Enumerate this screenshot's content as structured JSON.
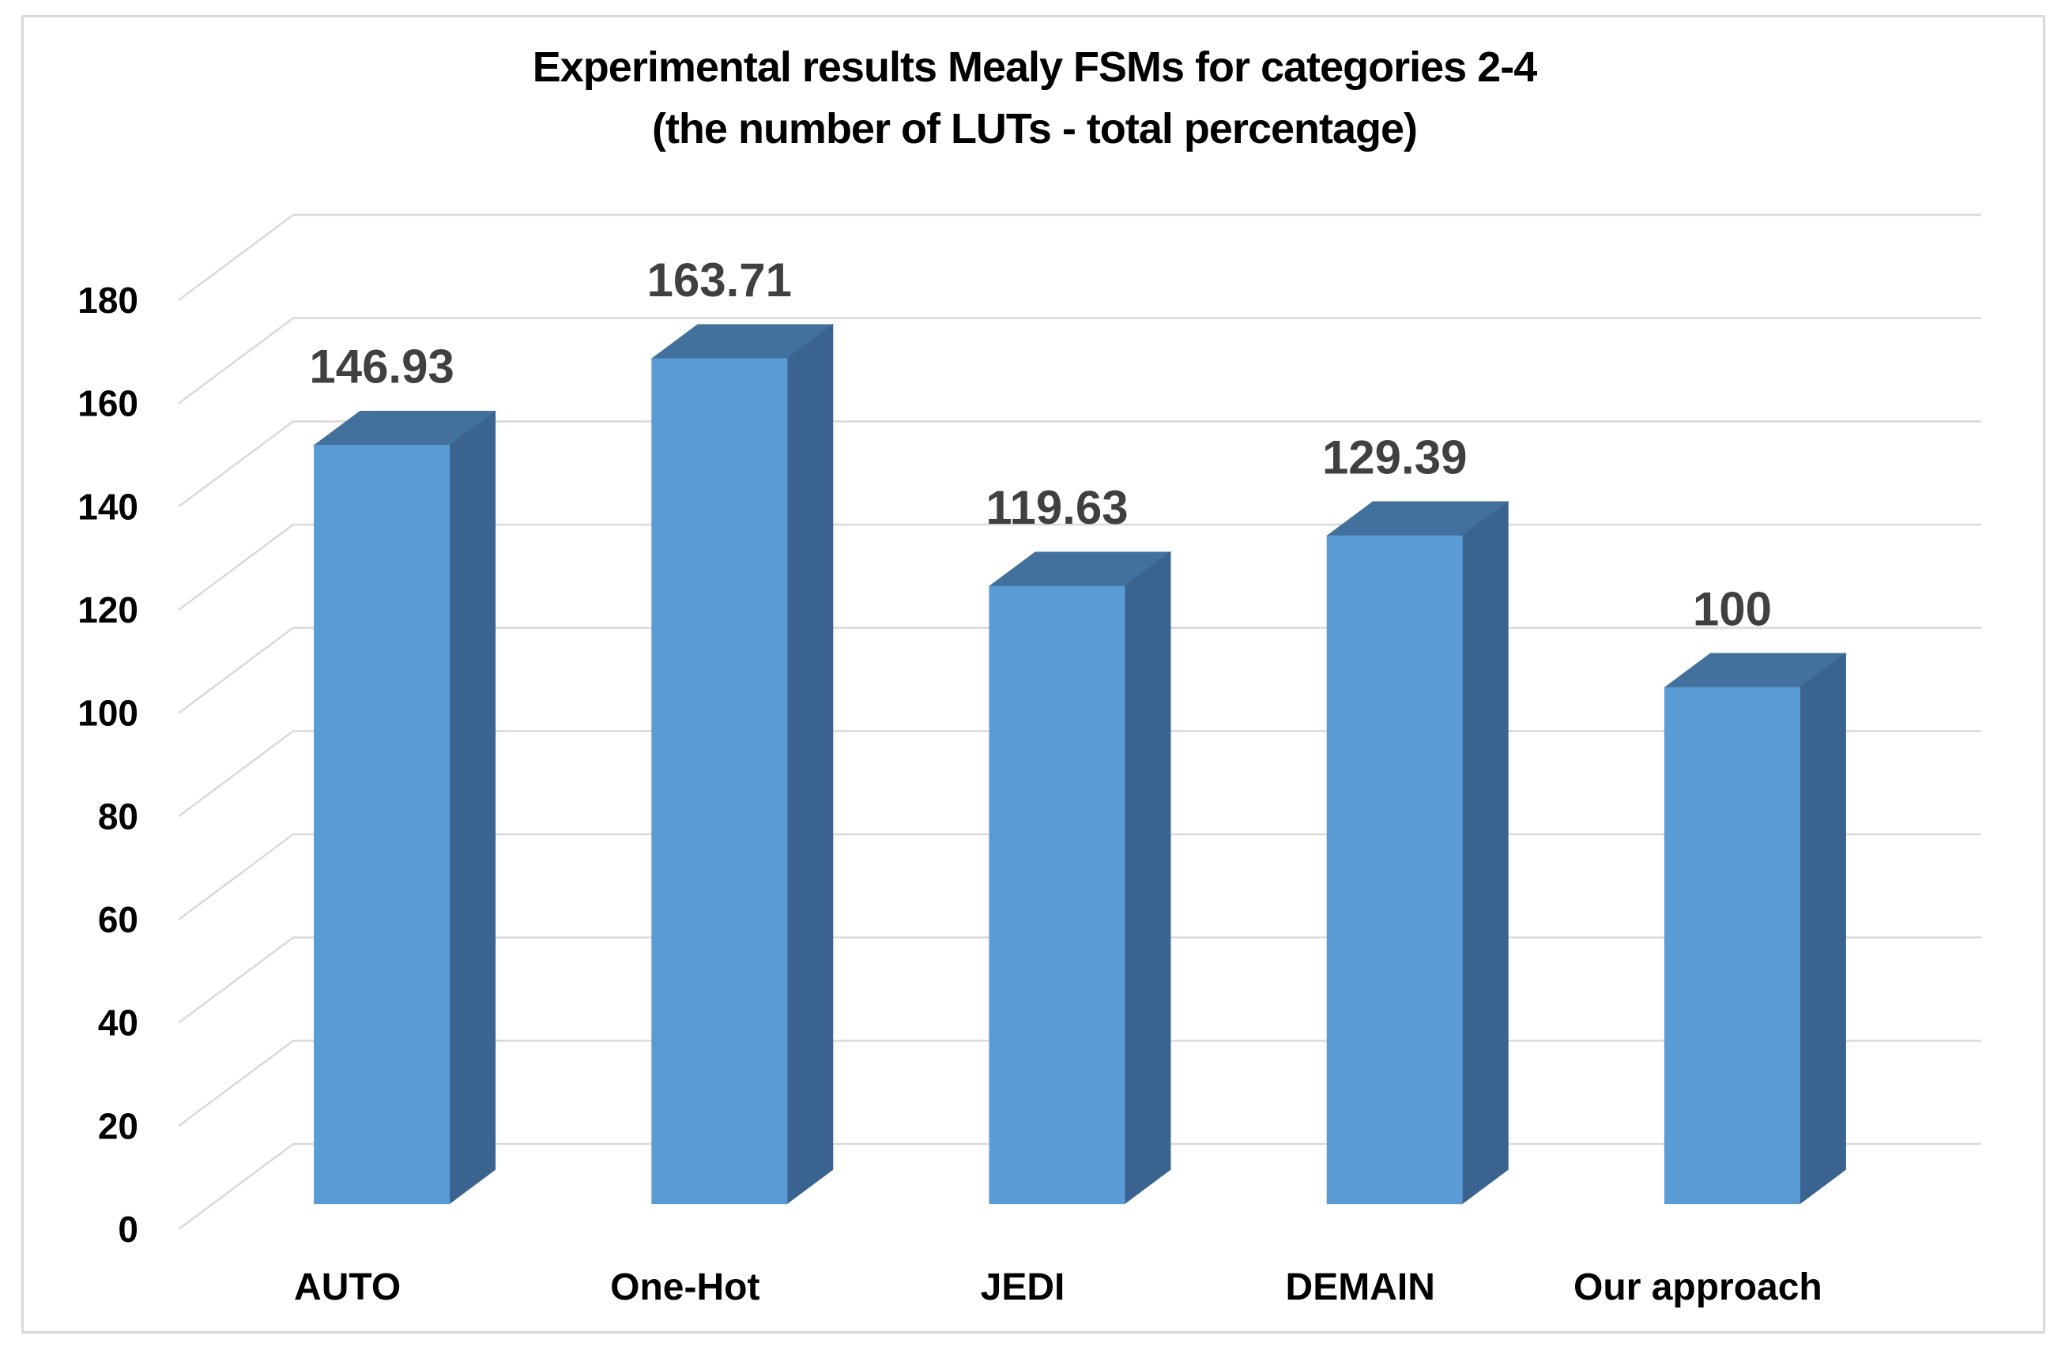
{
  "title": {
    "line1": "Experimental results Mealy FSMs for categories 2-4",
    "line2": "(the number of LUTs - total percentage)"
  },
  "chart_data": {
    "type": "bar",
    "variant": "3d-column",
    "title": "Experimental results Mealy FSMs for categories 2-4 (the number of LUTs - total percentage)",
    "categories": [
      "AUTO",
      "One-Hot",
      "JEDI",
      "DEMAIN",
      "Our approach"
    ],
    "values": [
      146.93,
      163.71,
      119.63,
      129.39,
      100
    ],
    "data_labels": [
      "146.93",
      "163.71",
      "119.63",
      "129.39",
      "100"
    ],
    "xlabel": "",
    "ylabel": "",
    "ylim": [
      0,
      180
    ],
    "ytick_step": 20,
    "yticks": [
      0,
      20,
      40,
      60,
      80,
      100,
      120,
      140,
      160,
      180
    ],
    "grid": true,
    "legend": "none",
    "colors": {
      "bar_front": "#5B9BD5",
      "bar_top": "#41719C",
      "bar_side": "#3A648F",
      "gridline": "#D9D9D9",
      "frame": "#D9D9D9",
      "data_label": "#404040",
      "axis_text": "#000000",
      "background": "#FFFFFF"
    }
  }
}
